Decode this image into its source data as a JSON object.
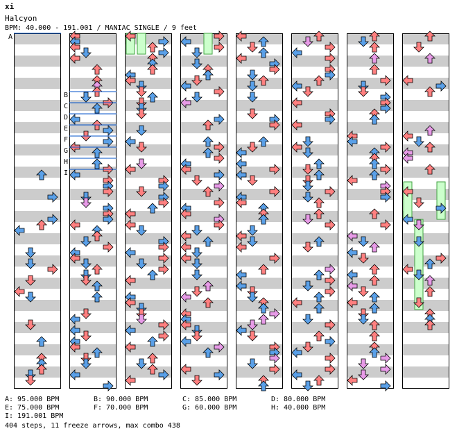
{
  "header": {
    "artist": "xi",
    "title": "Halcyon",
    "meta": "BPM: 40.000 - 191.001 / MANIAC SINGLE / 9 feet"
  },
  "bpm_markers": [
    "A",
    "B",
    "C",
    "D",
    "E",
    "F",
    "G",
    "H",
    "I"
  ],
  "bpm_legend": [
    "A: 95.000 BPM",
    "B: 90.000 BPM",
    "C: 85.000 BPM",
    "D: 80.000 BPM",
    "E: 75.000 BPM",
    "F: 70.000 BPM",
    "G: 60.000 BPM",
    "H: 40.000 BPM",
    "I: 191.001 BPM"
  ],
  "summary": "404 steps, 11 freeze arrows, max combo 438",
  "colors": {
    "stripe": "#cccccc",
    "quarter_arrow": "#ff8080",
    "eighth_arrow": "#5aa0e8",
    "sixteenth_arrow": "#e79be7",
    "freeze_body": "#ccffcc",
    "freeze_edge": "#40a040",
    "bpm_line": "#0050c8"
  },
  "chart_data": {
    "type": "stepchart",
    "mode": "MANIAC SINGLE",
    "difficulty_feet": 9,
    "bpm_range": [
      40.0,
      191.001
    ],
    "bpm_changes": [
      {
        "label": "A",
        "bpm": 95.0
      },
      {
        "label": "B",
        "bpm": 90.0
      },
      {
        "label": "C",
        "bpm": 85.0
      },
      {
        "label": "D",
        "bpm": 80.0
      },
      {
        "label": "E",
        "bpm": 75.0
      },
      {
        "label": "F",
        "bpm": 70.0
      },
      {
        "label": "G",
        "bpm": 60.0
      },
      {
        "label": "H",
        "bpm": 40.0
      },
      {
        "label": "I",
        "bpm": 191.001
      }
    ],
    "steps": 404,
    "freeze_arrows": 11,
    "max_combo": 438,
    "columns": 8,
    "measures_per_column": 8
  }
}
